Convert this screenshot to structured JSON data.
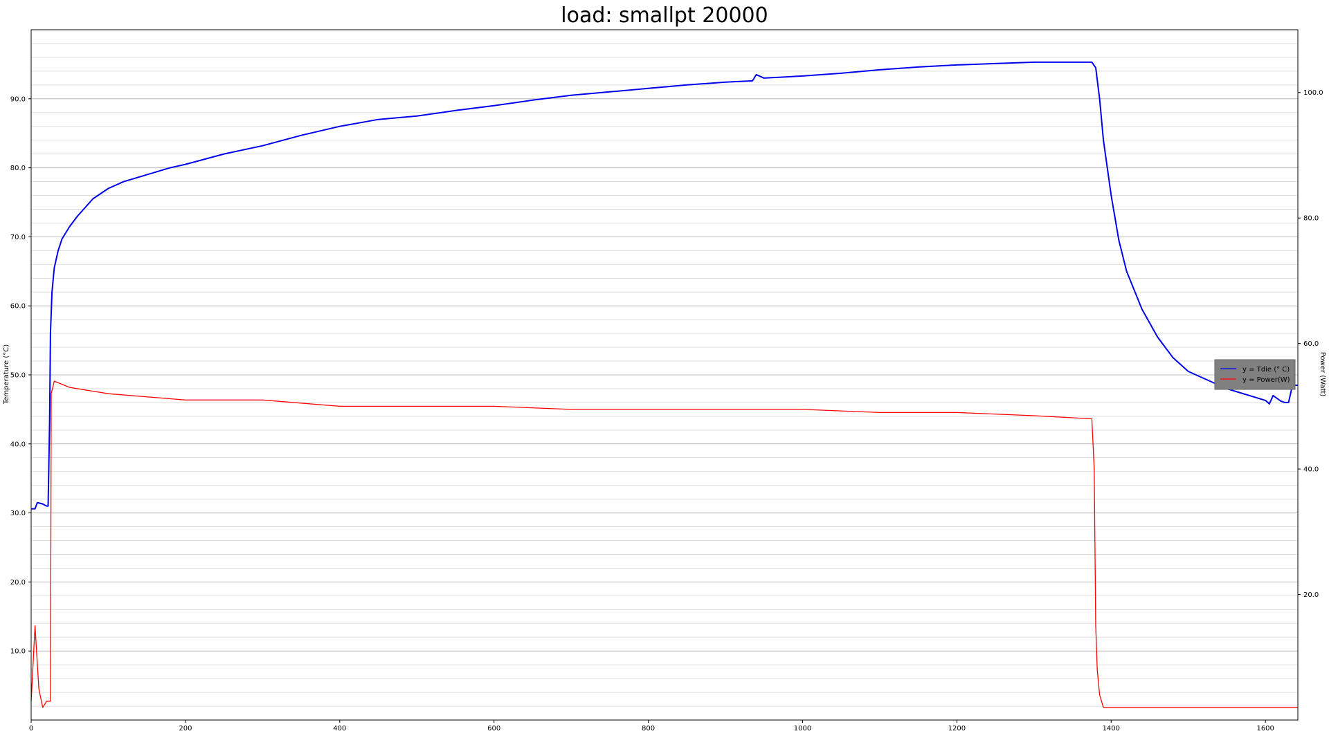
{
  "chart_data": {
    "type": "line",
    "title": "load: smallpt 20000",
    "xlabel": "",
    "ylabel_left": "Temperature (°C)",
    "ylabel_right": "Power (Watt)",
    "xlim": [
      0,
      1642
    ],
    "ylim_left": [
      0,
      100
    ],
    "ylim_right": [
      0,
      110
    ],
    "x_ticks": [
      "0",
      "200",
      "400",
      "600",
      "800",
      "1000",
      "1200",
      "1400",
      "1600"
    ],
    "y_left_ticks": [
      "10.0",
      "20.0",
      "30.0",
      "40.0",
      "50.0",
      "60.0",
      "70.0",
      "80.0",
      "90.0"
    ],
    "y_right_ticks": [
      "20.0",
      "40.0",
      "60.0",
      "80.0",
      "100.0"
    ],
    "grid": "horizontal major and minor",
    "legend_position": "right",
    "series": [
      {
        "name": "y = Tdie (° C)",
        "color": "#0000ee",
        "axis": "left",
        "x": [
          0,
          5,
          8,
          15,
          20,
          22,
          24,
          25,
          27,
          30,
          35,
          40,
          50,
          60,
          80,
          100,
          120,
          150,
          180,
          200,
          250,
          300,
          350,
          400,
          450,
          500,
          550,
          600,
          650,
          700,
          750,
          800,
          850,
          900,
          935,
          940,
          950,
          1000,
          1050,
          1100,
          1150,
          1200,
          1250,
          1300,
          1350,
          1375,
          1380,
          1385,
          1390,
          1400,
          1410,
          1420,
          1440,
          1460,
          1480,
          1500,
          1550,
          1600,
          1605,
          1610,
          1620,
          1625,
          1630,
          1635,
          1642
        ],
        "values": [
          30.6,
          30.6,
          31.5,
          31.3,
          31.0,
          31.0,
          43.5,
          56.0,
          62.0,
          65.5,
          68.0,
          69.7,
          71.5,
          73.0,
          75.5,
          77.0,
          78.0,
          79.0,
          80.0,
          80.5,
          82.0,
          83.2,
          84.7,
          86.0,
          87.0,
          87.5,
          88.3,
          89.0,
          89.8,
          90.5,
          91.0,
          91.5,
          92.0,
          92.4,
          92.6,
          93.5,
          93.0,
          93.3,
          93.7,
          94.2,
          94.6,
          94.9,
          95.1,
          95.3,
          95.3,
          95.3,
          94.5,
          90.0,
          84.0,
          76.0,
          69.5,
          65.0,
          59.5,
          55.5,
          52.5,
          50.5,
          48.0,
          46.3,
          45.8,
          47.0,
          46.2,
          46.0,
          46.0,
          48.5,
          48.5
        ]
      },
      {
        "name": "y = Power(W)",
        "color": "#ff0000",
        "axis": "right",
        "x": [
          0,
          5,
          10,
          15,
          20,
          25,
          26,
          30,
          50,
          100,
          200,
          300,
          400,
          500,
          600,
          700,
          800,
          900,
          1000,
          1100,
          1200,
          1300,
          1375,
          1378,
          1380,
          1382,
          1385,
          1390,
          1400,
          1500,
          1600,
          1642
        ],
        "values": [
          3,
          15,
          5,
          2,
          3,
          3,
          52,
          54,
          53,
          52,
          51,
          51,
          50,
          50,
          50,
          49.5,
          49.5,
          49.5,
          49.5,
          49,
          49,
          48.5,
          48,
          40,
          15,
          8,
          4,
          2,
          2,
          2,
          2,
          2
        ]
      }
    ]
  }
}
